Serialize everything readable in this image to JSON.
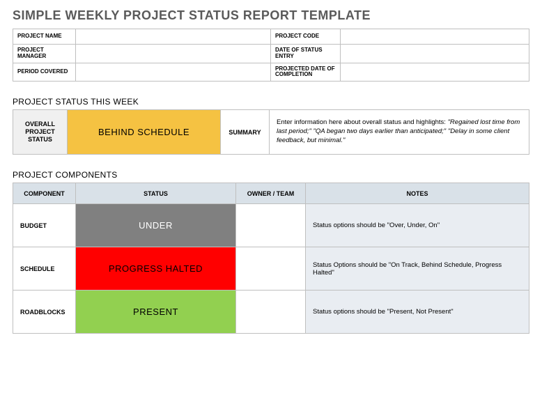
{
  "title": "SIMPLE WEEKLY PROJECT STATUS REPORT TEMPLATE",
  "colors": {
    "title_text": "#5a5a5a",
    "border": "#bfbfbf",
    "header_bg": "#d9e1e8",
    "notes_bg": "#e9edf2",
    "lbl_bg": "#f0f0f0",
    "behind_schedule": "#f5c242",
    "under": "#808080",
    "under_text": "#ffffff",
    "halted": "#ff0000",
    "present": "#92d050"
  },
  "info": {
    "project_name_label": "PROJECT NAME",
    "project_name_value": "",
    "project_code_label": "PROJECT CODE",
    "project_code_value": "",
    "project_manager_label": "PROJECT MANAGER",
    "project_manager_value": "",
    "date_status_label": "DATE OF STATUS ENTRY",
    "date_status_value": "",
    "period_covered_label": "PERIOD COVERED",
    "period_covered_value": "",
    "projected_completion_label": "PROJECTED DATE OF COMPLETION",
    "projected_completion_value": ""
  },
  "status_week": {
    "heading": "PROJECT STATUS THIS WEEK",
    "overall_label": "OVERALL PROJECT STATUS",
    "overall_value": "BEHIND SCHEDULE",
    "summary_label": "SUMMARY",
    "summary_prefix": "Enter information here about overall status and highlights: ",
    "summary_italic": "\"Regained lost time from last period;\" \"QA began two days earlier than anticipated;\" \"Delay in some client feedback, but minimal.\""
  },
  "components": {
    "heading": "PROJECT COMPONENTS",
    "columns": {
      "component": "COMPONENT",
      "status": "STATUS",
      "owner": "OWNER / TEAM",
      "notes": "NOTES"
    },
    "rows": [
      {
        "component": "BUDGET",
        "status": "UNDER",
        "status_bg": "#808080",
        "status_color": "#ffffff",
        "owner": "",
        "notes": "Status options should be \"Over, Under, On\""
      },
      {
        "component": "SCHEDULE",
        "status": "PROGRESS HALTED",
        "status_bg": "#ff0000",
        "status_color": "#000000",
        "owner": "",
        "notes": "Status Options should be \"On Track, Behind Schedule, Progress Halted\""
      },
      {
        "component": "ROADBLOCKS",
        "status": "PRESENT",
        "status_bg": "#92d050",
        "status_color": "#000000",
        "owner": "",
        "notes": "Status options should be \"Present, Not Present\""
      }
    ]
  }
}
